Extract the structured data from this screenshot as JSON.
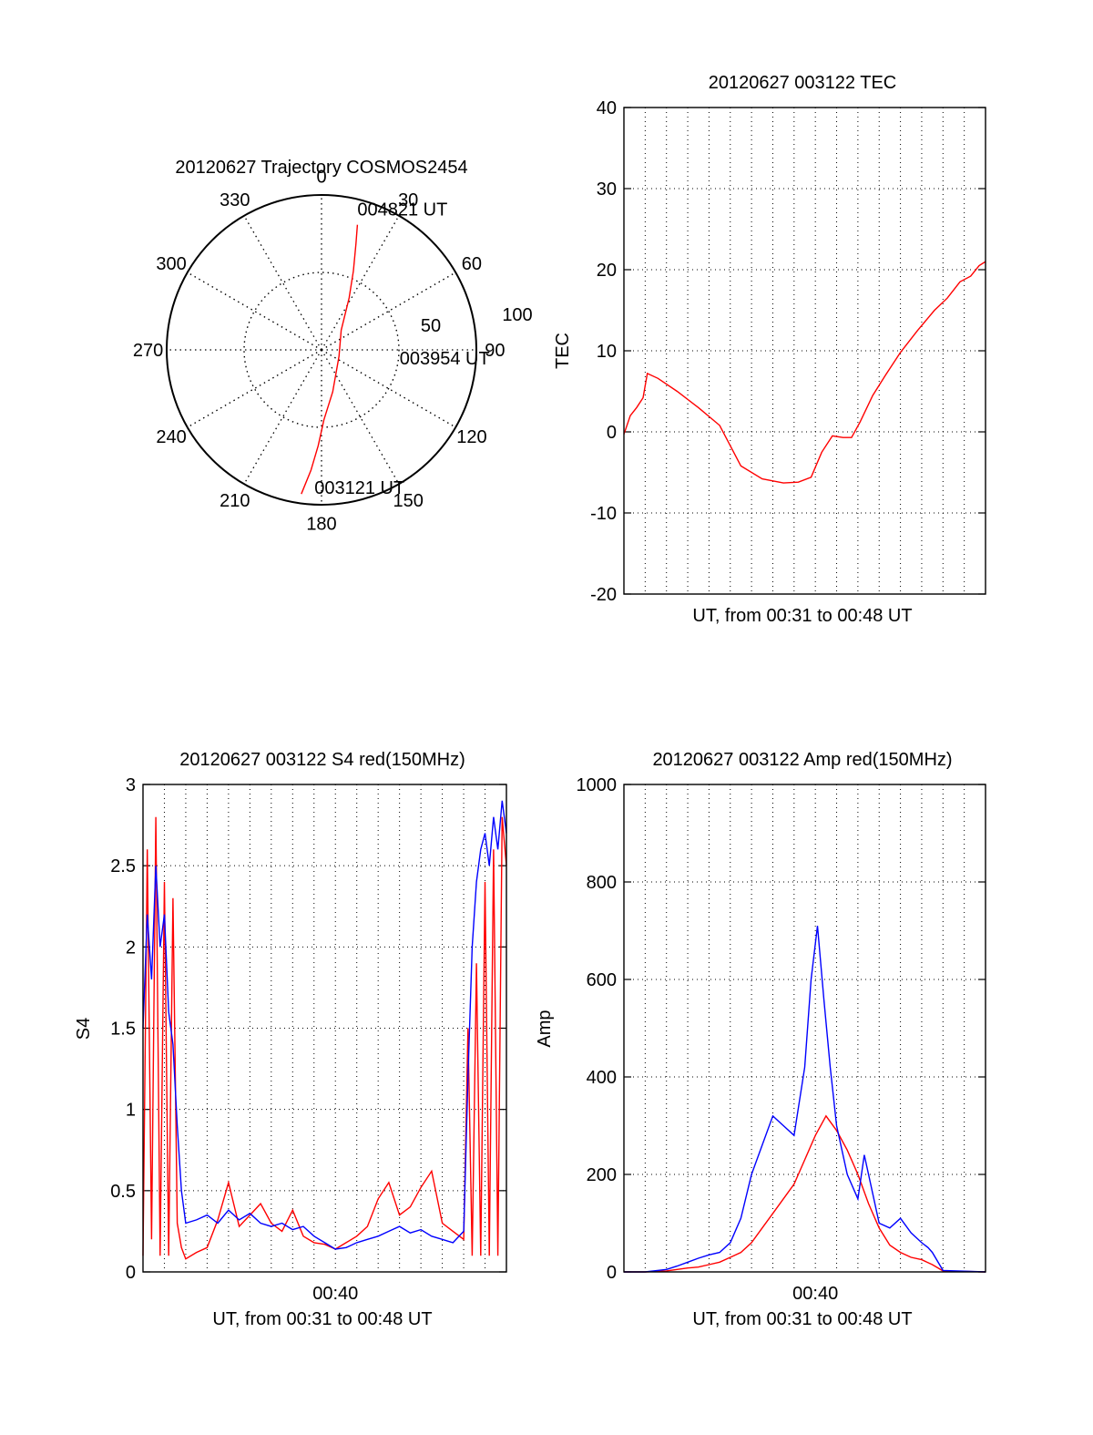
{
  "chart_data": [
    {
      "type": "polar",
      "title": "20120627 Trajectory COSMOS2454",
      "angle_labels": [
        "0",
        "30",
        "60",
        "90",
        "120",
        "150",
        "180",
        "210",
        "240",
        "270",
        "300",
        "330"
      ],
      "radial_labels": [
        "50",
        "100"
      ],
      "rlim": [
        0,
        100
      ],
      "grid": true,
      "series": [
        {
          "color": "#ff0000",
          "points": [
            {
              "az": 188,
              "r": 94
            },
            {
              "az": 185,
              "r": 78
            },
            {
              "az": 182,
              "r": 62
            },
            {
              "az": 178,
              "r": 45
            },
            {
              "az": 165,
              "r": 28
            },
            {
              "az": 110,
              "r": 12
            },
            {
              "az": 45,
              "r": 18
            },
            {
              "az": 28,
              "r": 38
            },
            {
              "az": 22,
              "r": 55
            },
            {
              "az": 18,
              "r": 72
            },
            {
              "az": 16,
              "r": 84
            }
          ]
        }
      ],
      "annotations": [
        {
          "text": "004821 UT",
          "az": 16,
          "r": 84
        },
        {
          "text": "003954 UT",
          "az": 95,
          "r": 27
        },
        {
          "text": "003121 UT",
          "az": 181,
          "r": 94
        }
      ]
    },
    {
      "type": "line",
      "title": "20120627 003122 TEC",
      "xlabel": "UT, from 00:31 to 00:48 UT",
      "ylabel": "TEC",
      "xlim": [
        0,
        17
      ],
      "ylim": [
        -20,
        40
      ],
      "yticks": [
        "-20",
        "-10",
        "0",
        "10",
        "20",
        "30",
        "40"
      ],
      "grid": true,
      "series": [
        {
          "color": "#ff0000",
          "x": [
            0.0,
            0.3,
            0.6,
            0.9,
            1.1,
            1.6,
            2.5,
            3.5,
            4.5,
            5.5,
            6.5,
            7.5,
            8.2,
            8.8,
            9.3,
            9.8,
            10.3,
            10.7,
            11.1,
            11.7,
            12.3,
            13.0,
            13.8,
            14.6,
            15.2,
            15.8,
            16.3,
            16.7,
            17.0
          ],
          "y": [
            -0.3,
            2.0,
            3.0,
            4.2,
            7.2,
            6.6,
            5.0,
            3.0,
            0.8,
            -4.2,
            -5.8,
            -6.3,
            -6.2,
            -5.6,
            -2.5,
            -0.5,
            -0.7,
            -0.7,
            1.2,
            4.5,
            7.0,
            9.8,
            12.5,
            15.0,
            16.5,
            18.5,
            19.2,
            20.5,
            21.0
          ]
        }
      ]
    },
    {
      "type": "line",
      "title": "20120627 003122 S4 red(150MHz)",
      "xlabel": "UT, from 00:31 to 00:48 UT",
      "ylabel": "S4",
      "xlim": [
        0,
        17
      ],
      "ylim": [
        0,
        3
      ],
      "yticks": [
        "0",
        "0.5",
        "1",
        "1.5",
        "2",
        "2.5",
        "3"
      ],
      "xticks": [
        {
          "value": 9,
          "label": "00:40"
        }
      ],
      "grid": true,
      "series": [
        {
          "color": "#ff0000",
          "x": [
            0.0,
            0.2,
            0.4,
            0.6,
            0.8,
            1.0,
            1.2,
            1.4,
            1.6,
            1.8,
            2.0,
            2.5,
            3.0,
            3.5,
            4.0,
            4.5,
            5.0,
            5.5,
            6.0,
            6.5,
            7.0,
            7.5,
            8.0,
            8.5,
            9.0,
            9.5,
            10.0,
            10.5,
            11.0,
            11.5,
            12.0,
            12.5,
            13.0,
            13.5,
            14.0,
            14.5,
            15.0,
            15.2,
            15.4,
            15.6,
            15.8,
            16.0,
            16.2,
            16.4,
            16.6,
            16.8,
            17.0
          ],
          "y": [
            0.1,
            2.6,
            0.2,
            2.8,
            0.1,
            2.4,
            0.1,
            2.3,
            0.3,
            0.15,
            0.08,
            0.12,
            0.15,
            0.32,
            0.55,
            0.28,
            0.35,
            0.42,
            0.3,
            0.25,
            0.38,
            0.22,
            0.18,
            0.17,
            0.14,
            0.18,
            0.22,
            0.28,
            0.45,
            0.55,
            0.35,
            0.4,
            0.52,
            0.62,
            0.3,
            0.25,
            0.2,
            1.5,
            0.1,
            1.9,
            0.1,
            2.4,
            0.1,
            2.6,
            0.1,
            2.8,
            2.5
          ]
        },
        {
          "color": "#0000ff",
          "x": [
            0.0,
            0.2,
            0.4,
            0.6,
            0.8,
            1.0,
            1.2,
            1.4,
            1.6,
            1.8,
            2.0,
            2.5,
            3.0,
            3.5,
            4.0,
            4.5,
            5.0,
            5.5,
            6.0,
            6.5,
            7.0,
            7.5,
            8.0,
            8.5,
            9.0,
            9.5,
            10.0,
            10.5,
            11.0,
            11.5,
            12.0,
            12.5,
            13.0,
            13.5,
            14.0,
            14.5,
            15.0,
            15.2,
            15.4,
            15.6,
            15.8,
            16.0,
            16.2,
            16.4,
            16.6,
            16.8,
            17.0
          ],
          "y": [
            1.5,
            2.2,
            1.8,
            2.5,
            2.0,
            2.2,
            1.6,
            1.4,
            0.9,
            0.5,
            0.3,
            0.32,
            0.35,
            0.3,
            0.38,
            0.32,
            0.36,
            0.3,
            0.28,
            0.3,
            0.26,
            0.28,
            0.22,
            0.18,
            0.14,
            0.15,
            0.18,
            0.2,
            0.22,
            0.25,
            0.28,
            0.24,
            0.26,
            0.22,
            0.2,
            0.18,
            0.25,
            1.2,
            2.0,
            2.4,
            2.6,
            2.7,
            2.5,
            2.8,
            2.6,
            2.9,
            2.7
          ]
        }
      ]
    },
    {
      "type": "line",
      "title": "20120627 003122 Amp red(150MHz)",
      "xlabel": "UT, from 00:31 to 00:48 UT",
      "ylabel": "Amp",
      "xlim": [
        0,
        17
      ],
      "ylim": [
        0,
        1000
      ],
      "yticks": [
        "0",
        "200",
        "400",
        "600",
        "800",
        "1000"
      ],
      "xticks": [
        {
          "value": 9,
          "label": "00:40"
        }
      ],
      "grid": true,
      "series": [
        {
          "color": "#ff0000",
          "x": [
            0.0,
            1.0,
            2.0,
            2.5,
            3.0,
            3.5,
            4.0,
            4.5,
            5.0,
            5.5,
            6.0,
            6.5,
            7.0,
            7.5,
            8.0,
            8.5,
            9.0,
            9.5,
            10.0,
            10.5,
            11.0,
            11.5,
            12.0,
            12.5,
            13.0,
            13.5,
            14.0,
            14.5,
            15.0,
            17.0
          ],
          "y": [
            0,
            0,
            2,
            5,
            8,
            10,
            15,
            20,
            30,
            40,
            60,
            90,
            120,
            150,
            180,
            230,
            280,
            320,
            290,
            250,
            200,
            140,
            90,
            55,
            40,
            30,
            25,
            15,
            2,
            0
          ]
        },
        {
          "color": "#0000ff",
          "x": [
            0.0,
            1.0,
            2.0,
            2.5,
            3.0,
            3.5,
            4.0,
            4.5,
            5.0,
            5.5,
            6.0,
            6.5,
            7.0,
            7.5,
            8.0,
            8.5,
            8.8,
            9.1,
            9.4,
            9.7,
            10.0,
            10.5,
            11.0,
            11.3,
            11.6,
            12.0,
            12.5,
            13.0,
            13.5,
            14.0,
            14.3,
            14.5,
            15.0,
            17.0
          ],
          "y": [
            0,
            0,
            5,
            12,
            20,
            28,
            35,
            40,
            60,
            110,
            200,
            260,
            320,
            300,
            280,
            420,
            600,
            710,
            560,
            420,
            300,
            200,
            150,
            240,
            180,
            100,
            90,
            110,
            80,
            60,
            50,
            40,
            3,
            0
          ]
        }
      ]
    }
  ]
}
